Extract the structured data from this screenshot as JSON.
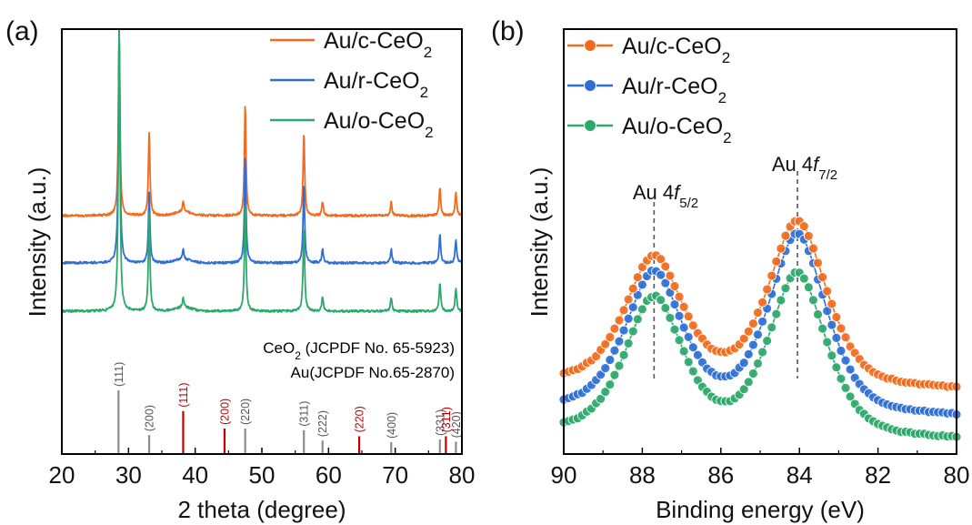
{
  "chart_data": [
    {
      "type": "line",
      "panel_label": "(a)",
      "xlabel": "2 theta (degree)",
      "ylabel": "Intensity (a.u.)",
      "xlim": [
        20,
        80
      ],
      "x_ticks": [
        20,
        30,
        40,
        50,
        60,
        70,
        80
      ],
      "y_ticks_visible": false,
      "grid": false,
      "legend_position": "top-right",
      "series": [
        {
          "name": "Au/c-CeO2",
          "base": "Au/c-CeO",
          "sub": "2",
          "color": "#F26B1D",
          "offset": 2.0,
          "peaks": [
            {
              "x": 28.6,
              "h": 4.0
            },
            {
              "x": 33.1,
              "h": 1.8
            },
            {
              "x": 38.2,
              "h": 0.25
            },
            {
              "x": 47.5,
              "h": 2.4
            },
            {
              "x": 56.3,
              "h": 1.8
            },
            {
              "x": 59.1,
              "h": 0.3
            },
            {
              "x": 69.4,
              "h": 0.3
            },
            {
              "x": 76.7,
              "h": 0.6
            },
            {
              "x": 79.1,
              "h": 0.5
            }
          ]
        },
        {
          "name": "Au/r-CeO2",
          "base": "Au/r-CeO",
          "sub": "2",
          "color": "#2E6FD6",
          "offset": 1.0,
          "peaks": [
            {
              "x": 28.6,
              "h": 5.3
            },
            {
              "x": 33.1,
              "h": 1.5
            },
            {
              "x": 38.2,
              "h": 0.2
            },
            {
              "x": 47.5,
              "h": 2.3
            },
            {
              "x": 56.3,
              "h": 1.7
            },
            {
              "x": 59.1,
              "h": 0.3
            },
            {
              "x": 69.4,
              "h": 0.3
            },
            {
              "x": 76.7,
              "h": 0.6
            },
            {
              "x": 79.1,
              "h": 0.5
            }
          ]
        },
        {
          "name": "Au/o-CeO2",
          "base": "Au/o-CeO",
          "sub": "2",
          "color": "#2CA86A",
          "offset": 0.0,
          "peaks": [
            {
              "x": 28.6,
              "h": 6.3
            },
            {
              "x": 33.1,
              "h": 2.1
            },
            {
              "x": 38.2,
              "h": 0.2
            },
            {
              "x": 47.5,
              "h": 2.3
            },
            {
              "x": 56.3,
              "h": 1.8
            },
            {
              "x": 59.1,
              "h": 0.3
            },
            {
              "x": 69.4,
              "h": 0.3
            },
            {
              "x": 76.7,
              "h": 0.6
            },
            {
              "x": 79.1,
              "h": 0.5
            }
          ]
        }
      ],
      "reference": {
        "ceo2_label": {
          "base": "CeO",
          "sub": "2",
          "tail": " (JCPDF No. 65-5923)",
          "color": "#555555"
        },
        "au_label": {
          "text": "Au(JCPDF No.65-2870)",
          "color": "#C00000"
        },
        "lines": [
          {
            "x": 28.5,
            "hkl": "(111)",
            "phase": "CeO2",
            "intensity": 1.0
          },
          {
            "x": 33.1,
            "hkl": "(200)",
            "phase": "CeO2",
            "intensity": 0.18
          },
          {
            "x": 38.2,
            "hkl": "(111)",
            "phase": "Au",
            "intensity": 0.62
          },
          {
            "x": 44.4,
            "hkl": "(200)",
            "phase": "Au",
            "intensity": 0.3
          },
          {
            "x": 47.5,
            "hkl": "(220)",
            "phase": "CeO2",
            "intensity": 0.3
          },
          {
            "x": 56.3,
            "hkl": "(311)",
            "phase": "CeO2",
            "intensity": 0.27
          },
          {
            "x": 59.1,
            "hkl": "(222)",
            "phase": "CeO2",
            "intensity": 0.08
          },
          {
            "x": 64.6,
            "hkl": "(220)",
            "phase": "Au",
            "intensity": 0.16
          },
          {
            "x": 69.4,
            "hkl": "(400)",
            "phase": "CeO2",
            "intensity": 0.05
          },
          {
            "x": 76.7,
            "hkl": "(331)",
            "phase": "CeO2",
            "intensity": 0.1
          },
          {
            "x": 77.6,
            "hkl": "(311)",
            "phase": "Au",
            "intensity": 0.16
          },
          {
            "x": 79.1,
            "hkl": "(420)",
            "phase": "CeO2",
            "intensity": 0.06
          }
        ]
      }
    },
    {
      "type": "line",
      "panel_label": "(b)",
      "xlabel": "Binding energy (eV)",
      "ylabel": "Intensity (a.u.)",
      "xlim": [
        90,
        80
      ],
      "x_ticks": [
        90,
        88,
        86,
        84,
        82,
        80
      ],
      "y_ticks_visible": false,
      "grid": false,
      "legend_position": "top-left",
      "markers": "circle",
      "series": [
        {
          "name": "Au/c-CeO2",
          "base": "Au/c-CeO",
          "sub": "2",
          "color": "#F26B1D",
          "baseline": 2.2,
          "peak_heights": {
            "4f5/2": 7.7,
            "4f7/2": 9.4
          }
        },
        {
          "name": "Au/r-CeO2",
          "base": "Au/r-CeO",
          "sub": "2",
          "color": "#2E6FD6",
          "baseline": 1.0,
          "peak_heights": {
            "4f5/2": 7.0,
            "4f7/2": 8.8
          }
        },
        {
          "name": "Au/o-CeO2",
          "base": "Au/o-CeO",
          "sub": "2",
          "color": "#2CA86A",
          "baseline": 0.0,
          "peak_heights": {
            "4f5/2": 5.9,
            "4f7/2": 7.1
          }
        }
      ],
      "peaks": [
        {
          "label_prefix": "Au 4",
          "label_f": "f",
          "label_sub": "5/2",
          "x": 87.7
        },
        {
          "label_prefix": "Au 4",
          "label_f": "f",
          "label_sub": "7/2",
          "x": 84.05
        }
      ]
    }
  ]
}
